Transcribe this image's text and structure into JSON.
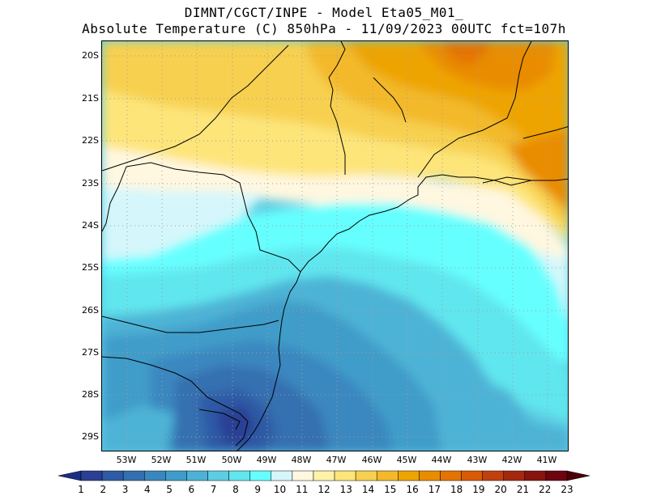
{
  "title": {
    "line1": "DIMNT/CGCT/INPE -  Model Eta05_M01_",
    "line2": "Absolute Temperature (C) 850hPa -  11/09/2023 00UTC fct=107h"
  },
  "map": {
    "lat_labels": [
      "20S",
      "21S",
      "22S",
      "23S",
      "24S",
      "25S",
      "26S",
      "27S",
      "28S",
      "29S"
    ],
    "lon_labels": [
      "53W",
      "52W",
      "51W",
      "50W",
      "49W",
      "48W",
      "47W",
      "46W",
      "45W",
      "44W",
      "43W",
      "42W",
      "41W"
    ]
  },
  "colorbar": {
    "labels": [
      "1",
      "2",
      "3",
      "4",
      "5",
      "6",
      "7",
      "8",
      "9",
      "10",
      "11",
      "12",
      "13",
      "14",
      "15",
      "16",
      "17",
      "18",
      "19",
      "20",
      "21",
      "22",
      "23"
    ],
    "colors": [
      "#2b3f94",
      "#2f5aa5",
      "#3470b0",
      "#3a87bf",
      "#3f9cc9",
      "#4db3d6",
      "#5ccde3",
      "#61e6ee",
      "#66ffff",
      "#d5f7fb",
      "#fff7e0",
      "#fff3a8",
      "#fde57a",
      "#f7d04f",
      "#f3b92a",
      "#eea400",
      "#e98c00",
      "#e57300",
      "#d95b06",
      "#c0400e",
      "#a4280f",
      "#88140f",
      "#6c0510"
    ],
    "arrow_left_color": "#1a2f83",
    "arrow_right_color": "#4a0207"
  }
}
